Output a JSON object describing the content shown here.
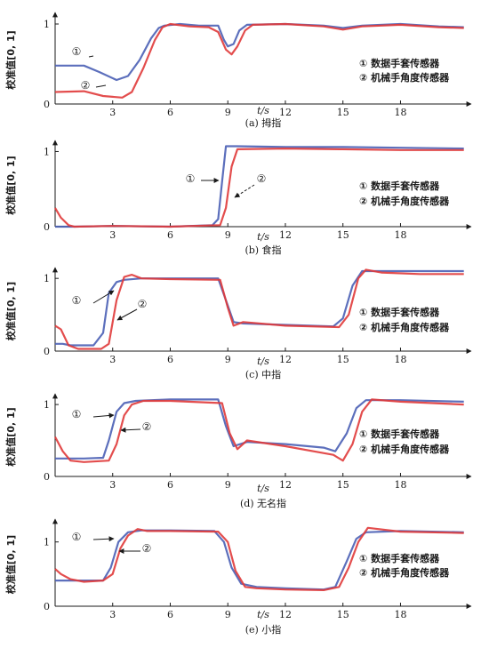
{
  "chart_data": [
    {
      "type": "line",
      "caption": "(a) 拇指",
      "ylabel": "校准值[0, 1]",
      "xlabel": "t/s",
      "xticks": [
        "3",
        "6",
        "9",
        "12",
        "15",
        "18"
      ],
      "yticks": [
        "0",
        "1"
      ],
      "xlim": [
        0,
        21.5
      ],
      "ylim": [
        0,
        1.1
      ],
      "legend": [
        "① 数据手套传感器",
        "② 机械手角度传感器"
      ],
      "markers": [
        "①",
        "②"
      ],
      "series": [
        {
          "color": "#4a5fb5",
          "x": [
            0,
            1.5,
            2.3,
            3.2,
            3.8,
            4.4,
            5.0,
            5.4,
            5.7,
            6.5,
            7.5,
            8.5,
            8.8,
            9.0,
            9.3,
            9.6,
            10.0,
            12,
            14,
            15,
            16,
            18,
            20,
            21.3
          ],
          "y": [
            0.48,
            0.48,
            0.4,
            0.3,
            0.35,
            0.55,
            0.82,
            0.95,
            0.98,
            1.0,
            0.98,
            0.98,
            0.8,
            0.72,
            0.75,
            0.92,
            0.99,
            1.0,
            0.98,
            0.95,
            0.98,
            1.0,
            0.97,
            0.96
          ]
        },
        {
          "color": "#e03a3a",
          "x": [
            0,
            1.5,
            2.5,
            3.5,
            4.0,
            4.6,
            5.2,
            5.6,
            6.0,
            7.0,
            8.0,
            8.5,
            8.9,
            9.2,
            9.5,
            9.9,
            10.3,
            12,
            14,
            15,
            16,
            18,
            20,
            21.3
          ],
          "y": [
            0.15,
            0.16,
            0.1,
            0.08,
            0.15,
            0.45,
            0.8,
            0.96,
            1.0,
            0.97,
            0.96,
            0.9,
            0.68,
            0.62,
            0.72,
            0.92,
            0.99,
            1.0,
            0.97,
            0.93,
            0.97,
            0.99,
            0.96,
            0.95
          ]
        }
      ]
    },
    {
      "type": "line",
      "caption": "(b) 食指",
      "ylabel": "校准值[0, 1]",
      "xlabel": "t/s",
      "xticks": [
        "3",
        "6",
        "9",
        "12",
        "15",
        "18"
      ],
      "yticks": [
        "0",
        "1"
      ],
      "xlim": [
        0,
        21.5
      ],
      "ylim": [
        0,
        1.1
      ],
      "legend": [
        "① 数据手套传感器",
        "② 机械手角度传感器"
      ],
      "markers": [
        "①",
        "②"
      ],
      "series": [
        {
          "color": "#4a5fb5",
          "x": [
            0,
            0.5,
            1.0,
            3,
            6,
            8.2,
            8.5,
            8.7,
            8.9,
            9.5,
            12,
            15,
            18,
            21.3
          ],
          "y": [
            0.0,
            0.0,
            0.0,
            0.01,
            0.0,
            0.02,
            0.1,
            0.6,
            1.07,
            1.07,
            1.06,
            1.06,
            1.05,
            1.04
          ]
        },
        {
          "color": "#e03a3a",
          "x": [
            0,
            0.3,
            0.7,
            1.0,
            3,
            6,
            8.6,
            8.9,
            9.2,
            9.5,
            12,
            15,
            18,
            21.3
          ],
          "y": [
            0.25,
            0.12,
            0.02,
            0.0,
            0.01,
            0.0,
            0.02,
            0.25,
            0.8,
            1.03,
            1.04,
            1.03,
            1.02,
            1.02
          ]
        }
      ]
    },
    {
      "type": "line",
      "caption": "(c) 中指",
      "ylabel": "校准值[0, 1]",
      "xlabel": "t/s",
      "xticks": [
        "3",
        "6",
        "9",
        "12",
        "15",
        "18"
      ],
      "yticks": [
        "0",
        "1"
      ],
      "xlim": [
        0,
        21.5
      ],
      "ylim": [
        0,
        1.1
      ],
      "legend": [
        "① 数据手套传感器",
        "② 机械手角度传感器"
      ],
      "markers": [
        "①",
        "②"
      ],
      "series": [
        {
          "color": "#4a5fb5",
          "x": [
            0,
            0.4,
            0.8,
            2.0,
            2.5,
            2.8,
            3.2,
            3.6,
            4.5,
            6,
            8.5,
            8.9,
            9.3,
            9.8,
            12,
            14.5,
            15.0,
            15.5,
            16.0,
            17,
            19,
            21.3
          ],
          "y": [
            0.1,
            0.1,
            0.08,
            0.08,
            0.25,
            0.8,
            0.95,
            0.98,
            1.0,
            1.0,
            1.0,
            0.7,
            0.4,
            0.38,
            0.36,
            0.34,
            0.45,
            0.9,
            1.1,
            1.1,
            1.1,
            1.1
          ]
        },
        {
          "color": "#e03a3a",
          "x": [
            0,
            0.3,
            0.7,
            1.2,
            2.4,
            2.8,
            3.2,
            3.6,
            4.0,
            4.5,
            6,
            8.6,
            9.0,
            9.3,
            9.8,
            12,
            14.8,
            15.3,
            15.8,
            16.2,
            17,
            19,
            21.3
          ],
          "y": [
            0.35,
            0.3,
            0.08,
            0.03,
            0.03,
            0.1,
            0.7,
            1.02,
            1.05,
            1.0,
            0.99,
            0.98,
            0.6,
            0.35,
            0.4,
            0.35,
            0.33,
            0.5,
            1.0,
            1.12,
            1.08,
            1.06,
            1.06
          ]
        }
      ]
    },
    {
      "type": "line",
      "caption": "(d) 无名指",
      "ylabel": "校准值[0, 1]",
      "xlabel": "t/s",
      "xticks": [
        "3",
        "6",
        "9",
        "12",
        "15",
        "18"
      ],
      "yticks": [
        "0",
        "1"
      ],
      "xlim": [
        0,
        21.5
      ],
      "ylim": [
        0,
        1.1
      ],
      "legend": [
        "① 数据手套传感器",
        "② 机械手角度传感器"
      ],
      "markers": [
        "①",
        "②"
      ],
      "series": [
        {
          "color": "#4a5fb5",
          "x": [
            0,
            0.5,
            1.5,
            2.5,
            2.8,
            3.2,
            3.6,
            4.2,
            6,
            8.5,
            8.9,
            9.3,
            10,
            12,
            14,
            14.6,
            15.2,
            15.7,
            16.2,
            18,
            21.3
          ],
          "y": [
            0.25,
            0.25,
            0.25,
            0.26,
            0.5,
            0.9,
            1.02,
            1.05,
            1.07,
            1.07,
            0.7,
            0.42,
            0.48,
            0.45,
            0.4,
            0.35,
            0.6,
            0.95,
            1.06,
            1.06,
            1.04
          ]
        },
        {
          "color": "#e03a3a",
          "x": [
            0,
            0.4,
            0.8,
            1.5,
            2.8,
            3.2,
            3.6,
            4.0,
            4.6,
            6,
            8.7,
            9.1,
            9.5,
            10,
            12,
            14.5,
            15.0,
            15.5,
            16.0,
            16.5,
            18,
            21.3
          ],
          "y": [
            0.55,
            0.35,
            0.22,
            0.2,
            0.22,
            0.45,
            0.85,
            1.0,
            1.05,
            1.05,
            1.02,
            0.6,
            0.38,
            0.5,
            0.42,
            0.3,
            0.22,
            0.45,
            0.9,
            1.07,
            1.04,
            1.0
          ]
        }
      ]
    },
    {
      "type": "line",
      "caption": "(e) 小指",
      "ylabel": "校准值[0, 1]",
      "xlabel": "t/s",
      "xticks": [
        "3",
        "6",
        "9",
        "12",
        "15",
        "18"
      ],
      "yticks": [
        "0",
        "1"
      ],
      "xlim": [
        0,
        21.5
      ],
      "ylim": [
        0,
        1.3
      ],
      "legend": [
        "① 数据手套传感器",
        "② 机械手角度传感器"
      ],
      "markers": [
        "①",
        "②"
      ],
      "series": [
        {
          "color": "#4a5fb5",
          "x": [
            0,
            1,
            2.5,
            2.9,
            3.3,
            3.8,
            4.5,
            6,
            8.3,
            8.8,
            9.2,
            9.7,
            10.5,
            12,
            14,
            14.6,
            15.2,
            15.7,
            16.2,
            18,
            21.3
          ],
          "y": [
            0.4,
            0.4,
            0.4,
            0.6,
            1.0,
            1.15,
            1.18,
            1.18,
            1.17,
            1.0,
            0.6,
            0.35,
            0.3,
            0.28,
            0.26,
            0.3,
            0.7,
            1.05,
            1.15,
            1.17,
            1.15
          ]
        },
        {
          "color": "#e03a3a",
          "x": [
            0,
            0.3,
            0.8,
            1.5,
            2.5,
            3.0,
            3.4,
            3.8,
            4.3,
            4.8,
            6,
            8.5,
            9.0,
            9.4,
            9.9,
            10.5,
            12,
            14,
            14.8,
            15.3,
            15.8,
            16.3,
            18,
            21.3
          ],
          "y": [
            0.58,
            0.5,
            0.42,
            0.38,
            0.4,
            0.5,
            0.9,
            1.1,
            1.2,
            1.17,
            1.17,
            1.16,
            1.0,
            0.55,
            0.3,
            0.28,
            0.26,
            0.25,
            0.3,
            0.6,
            1.0,
            1.22,
            1.16,
            1.14
          ]
        }
      ]
    }
  ]
}
